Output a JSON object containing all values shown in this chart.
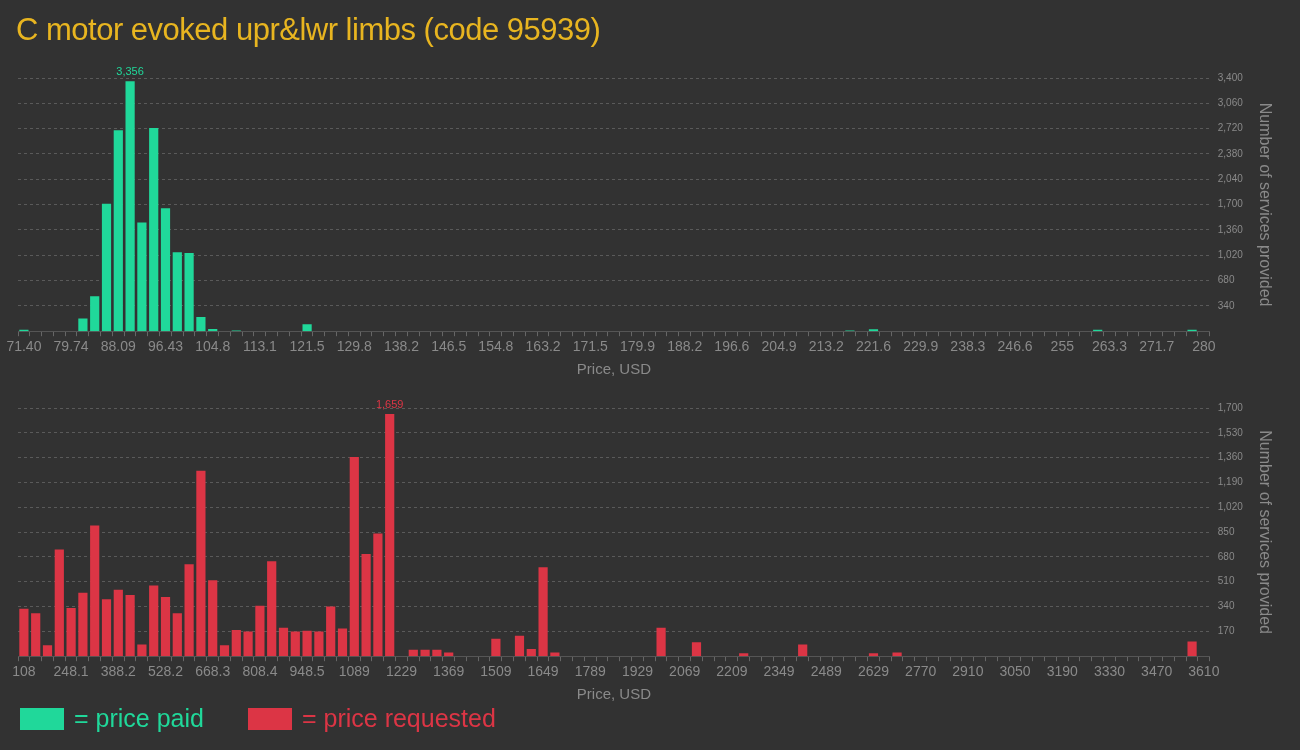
{
  "chart_data": [
    {
      "type": "bar",
      "title": "C motor evoked upr&lwr limbs (code 95939)",
      "xlabel": "Price, USD",
      "ylabel": "Number of services provided",
      "categories": [
        "71.40",
        null,
        null,
        null,
        "79.74",
        null,
        null,
        null,
        "88.09",
        null,
        null,
        null,
        "96.43",
        null,
        null,
        null,
        "104.8",
        null,
        null,
        null,
        "113.1",
        null,
        null,
        null,
        "121.5",
        null,
        null,
        null,
        "129.8",
        null,
        null,
        null,
        "138.2",
        null,
        null,
        null,
        "146.5",
        null,
        null,
        null,
        "154.8",
        null,
        null,
        null,
        "163.2",
        null,
        null,
        null,
        "171.5",
        null,
        null,
        null,
        "179.9",
        null,
        null,
        null,
        "188.2",
        null,
        null,
        null,
        "196.6",
        null,
        null,
        null,
        "204.9",
        null,
        null,
        null,
        "213.2",
        null,
        null,
        null,
        "221.6",
        null,
        null,
        null,
        "229.9",
        null,
        null,
        null,
        "238.3",
        null,
        null,
        null,
        "246.6",
        null,
        null,
        null,
        "255",
        null,
        null,
        null,
        "263.3",
        null,
        null,
        null,
        "271.7",
        null,
        null,
        null,
        "280"
      ],
      "series": [
        {
          "name": "= price paid",
          "color": "#20d89a",
          "values": [
            20,
            0,
            0,
            0,
            0,
            170,
            470,
            1710,
            2700,
            3356,
            1460,
            2730,
            1650,
            1060,
            1050,
            190,
            30,
            0,
            10,
            0,
            0,
            0,
            0,
            0,
            95,
            0,
            0,
            0,
            0,
            0,
            0,
            0,
            0,
            0,
            0,
            0,
            0,
            0,
            0,
            0,
            0,
            0,
            0,
            0,
            0,
            0,
            0,
            0,
            0,
            0,
            0,
            0,
            0,
            0,
            0,
            0,
            0,
            0,
            0,
            0,
            0,
            0,
            0,
            0,
            0,
            0,
            0,
            0,
            0,
            0,
            10,
            0,
            25,
            0,
            0,
            0,
            0,
            0,
            0,
            0,
            0,
            0,
            0,
            0,
            0,
            0,
            0,
            0,
            0,
            0,
            0,
            20,
            0,
            0,
            0,
            0,
            0,
            0,
            0,
            20,
            0
          ],
          "value_labels": [
            null,
            null,
            null,
            null,
            null,
            null,
            null,
            null,
            null,
            "3,356",
            null,
            null,
            null,
            null,
            null,
            null,
            null,
            null,
            null,
            null,
            null,
            null,
            null,
            null,
            null,
            null,
            null,
            null,
            null,
            null,
            null,
            null,
            null,
            null,
            null,
            null,
            null,
            null,
            null,
            null,
            null,
            null,
            null,
            null,
            null,
            null,
            null,
            null,
            null,
            null,
            null,
            null,
            null,
            null,
            null,
            null,
            null,
            null,
            null,
            null,
            null,
            null,
            null,
            null,
            null,
            null,
            null,
            null,
            null,
            null,
            null,
            null,
            null,
            null,
            null,
            null,
            null,
            null,
            null,
            null,
            null,
            null,
            null,
            null,
            null,
            null,
            null,
            null,
            null,
            null,
            null,
            null,
            null,
            null,
            null,
            null,
            null,
            null,
            null,
            null,
            null
          ]
        }
      ],
      "ylim": [
        0,
        3400
      ],
      "yticks": [
        340,
        680,
        {
          "value": 1020,
          "label": "1,020"
        },
        {
          "value": 1360,
          "label": "1,360"
        },
        {
          "value": 1700,
          "label": "1,700"
        },
        {
          "value": 2040,
          "label": "2,040"
        },
        {
          "value": 2380,
          "label": "2,380"
        },
        {
          "value": 2720,
          "label": "2,720"
        },
        {
          "value": 3060,
          "label": "3,060"
        },
        {
          "value": 3400,
          "label": "3,400"
        }
      ],
      "grid": "y",
      "legend": "bottom left"
    },
    {
      "type": "bar",
      "xlabel": "Price, USD",
      "ylabel": "Number of services provided",
      "categories": [
        "108",
        null,
        null,
        null,
        "248.1",
        null,
        null,
        null,
        "388.2",
        null,
        null,
        null,
        "528.2",
        null,
        null,
        null,
        "668.3",
        null,
        null,
        null,
        "808.4",
        null,
        null,
        null,
        "948.5",
        null,
        null,
        null,
        "1089",
        null,
        null,
        null,
        "1229",
        null,
        null,
        null,
        "1369",
        null,
        null,
        null,
        "1509",
        null,
        null,
        null,
        "1649",
        null,
        null,
        null,
        "1789",
        null,
        null,
        null,
        "1929",
        null,
        null,
        null,
        "2069",
        null,
        null,
        null,
        "2209",
        null,
        null,
        null,
        "2349",
        null,
        null,
        null,
        "2489",
        null,
        null,
        null,
        "2629",
        null,
        null,
        null,
        "2770",
        null,
        null,
        null,
        "2910",
        null,
        null,
        null,
        "3050",
        null,
        null,
        null,
        "3190",
        null,
        null,
        null,
        "3330",
        null,
        null,
        null,
        "3470",
        null,
        null,
        null,
        "3610"
      ],
      "series": [
        {
          "name": "= price requested",
          "color": "#dc3545",
          "values": [
            325,
            295,
            75,
            730,
            330,
            435,
            895,
            390,
            455,
            420,
            80,
            485,
            405,
            295,
            630,
            1270,
            520,
            75,
            180,
            170,
            345,
            650,
            195,
            170,
            175,
            170,
            340,
            190,
            1365,
            700,
            840,
            1659,
            0,
            45,
            45,
            45,
            25,
            0,
            0,
            0,
            120,
            0,
            140,
            50,
            610,
            25,
            0,
            0,
            0,
            0,
            0,
            0,
            0,
            0,
            195,
            0,
            0,
            95,
            0,
            0,
            0,
            20,
            0,
            0,
            0,
            0,
            80,
            0,
            0,
            0,
            0,
            0,
            20,
            0,
            25,
            0,
            0,
            0,
            0,
            0,
            0,
            0,
            0,
            0,
            0,
            0,
            0,
            0,
            0,
            0,
            0,
            0,
            0,
            0,
            0,
            0,
            0,
            0,
            0,
            100,
            0
          ],
          "value_labels": [
            null,
            null,
            null,
            null,
            null,
            null,
            null,
            null,
            null,
            null,
            null,
            null,
            null,
            null,
            null,
            null,
            null,
            null,
            null,
            null,
            null,
            null,
            null,
            null,
            null,
            null,
            null,
            null,
            null,
            null,
            null,
            "1,659",
            null,
            null,
            null,
            null,
            null,
            null,
            null,
            null,
            null,
            null,
            null,
            null,
            null,
            null,
            null,
            null,
            null,
            null,
            null,
            null,
            null,
            null,
            null,
            null,
            null,
            null,
            null,
            null,
            null,
            null,
            null,
            null,
            null,
            null,
            null,
            null,
            null,
            null,
            null,
            null,
            null,
            null,
            null,
            null,
            null,
            null,
            null,
            null,
            null,
            null,
            null,
            null,
            null,
            null,
            null,
            null,
            null,
            null,
            null,
            null,
            null,
            null,
            null,
            null,
            null,
            null,
            null,
            null,
            null
          ]
        }
      ],
      "ylim": [
        0,
        1700
      ],
      "yticks": [
        170,
        340,
        510,
        680,
        850,
        {
          "value": 1020,
          "label": "1,020"
        },
        {
          "value": 1190,
          "label": "1,190"
        },
        {
          "value": 1360,
          "label": "1,360"
        },
        {
          "value": 1530,
          "label": "1,530"
        },
        {
          "value": 1700,
          "label": "1,700"
        }
      ],
      "grid": "y",
      "legend": "bottom left"
    }
  ]
}
